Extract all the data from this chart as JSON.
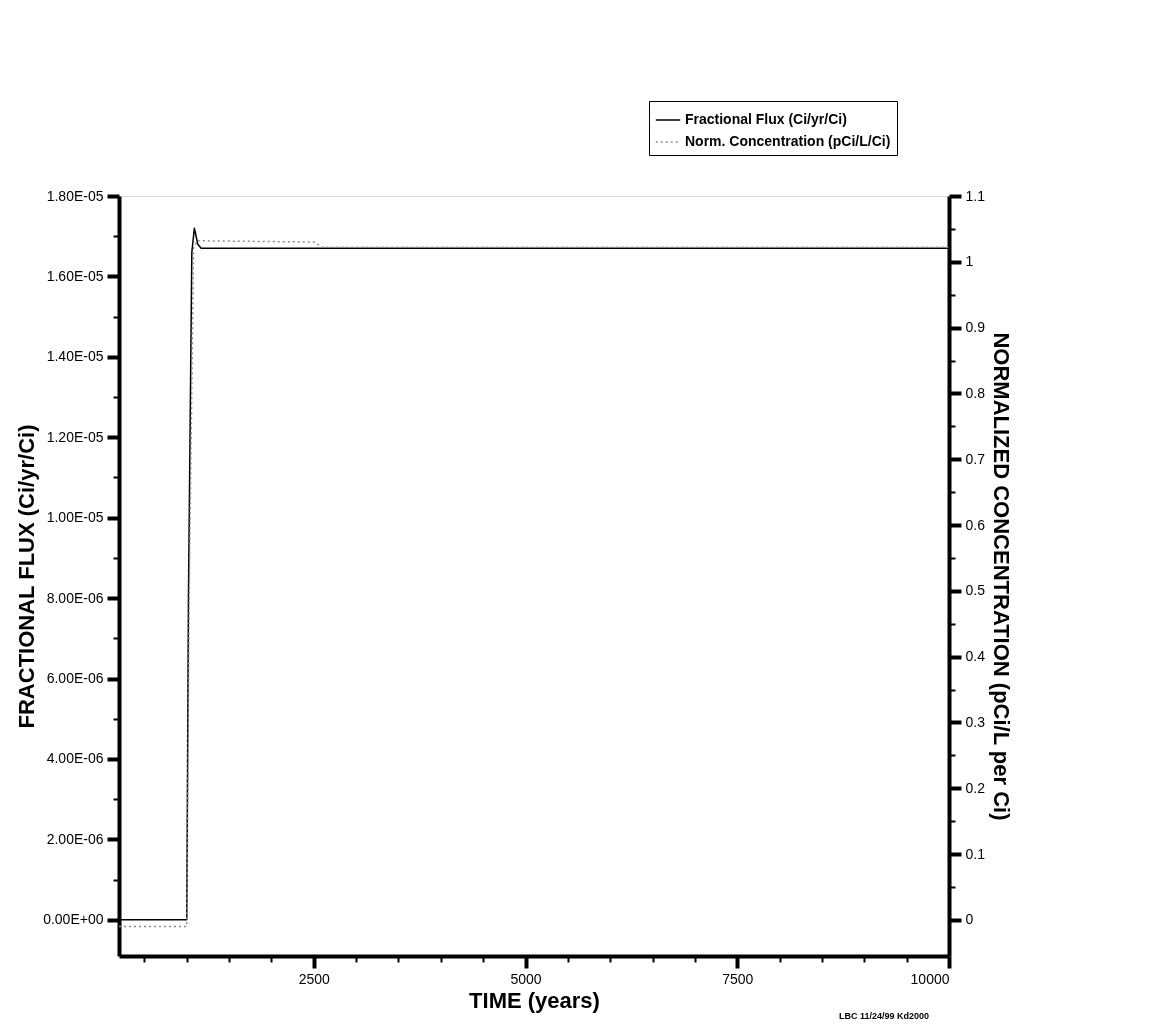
{
  "chart_data": {
    "type": "line",
    "xlabel": "TIME (years)",
    "ylabel": "FRACTIONAL FLUX (Ci/yr/Ci)",
    "y2label": "NORMALIZED CONCENTRATION (pCi/L per Ci)",
    "series": [
      {
        "name": "Fractional Flux (Ci/yr/Ci)",
        "color": "#000000",
        "line_style": "solid",
        "x": [
          200,
          1000,
          1020,
          1060,
          1090,
          1130,
          1170,
          10000
        ],
        "values": [
          0,
          0,
          8e-06,
          1.66e-05,
          1.72e-05,
          1.68e-05,
          1.67e-05,
          1.67e-05
        ]
      },
      {
        "name": "Norm. Concentration (pCi/L/Ci)",
        "color": "#8c8c8c",
        "line_style": "dotted",
        "axis": "y2",
        "x": [
          200,
          1000,
          1030,
          1080,
          1120,
          2500,
          2600,
          10000
        ],
        "values": [
          -0.01,
          -0.01,
          0.5,
          1.02,
          1.032,
          1.03,
          1.022,
          1.022
        ]
      }
    ],
    "xlim": [
      200,
      10000
    ],
    "xticks": [
      {
        "value": 500,
        "label": null
      },
      {
        "value": 1000,
        "label": null
      },
      {
        "value": 1500,
        "label": null
      },
      {
        "value": 2000,
        "label": null
      },
      2500,
      {
        "value": 3000,
        "label": null
      },
      {
        "value": 3500,
        "label": null
      },
      {
        "value": 4000,
        "label": null
      },
      {
        "value": 4500,
        "label": null
      },
      5000,
      {
        "value": 5500,
        "label": null
      },
      {
        "value": 6000,
        "label": null
      },
      {
        "value": 6500,
        "label": null
      },
      {
        "value": 7000,
        "label": null
      },
      7500,
      {
        "value": 8000,
        "label": null
      },
      {
        "value": 8500,
        "label": null
      },
      {
        "value": 9000,
        "label": null
      },
      {
        "value": 9500,
        "label": null
      },
      10000
    ],
    "ylim": [
      -9e-07,
      1.8e-05
    ],
    "yticks": [
      {
        "value": 0,
        "label": "0.00E+00"
      },
      {
        "value": 1e-06,
        "label": null
      },
      {
        "value": 2e-06,
        "label": "2.00E-06"
      },
      {
        "value": 3e-06,
        "label": null
      },
      {
        "value": 4e-06,
        "label": "4.00E-06"
      },
      {
        "value": 5e-06,
        "label": null
      },
      {
        "value": 6e-06,
        "label": "6.00E-06"
      },
      {
        "value": 7e-06,
        "label": null
      },
      {
        "value": 8e-06,
        "label": "8.00E-06"
      },
      {
        "value": 9e-06,
        "label": null
      },
      {
        "value": 1e-05,
        "label": "1.00E-05"
      },
      {
        "value": 1.1e-05,
        "label": null
      },
      {
        "value": 1.2e-05,
        "label": "1.20E-05"
      },
      {
        "value": 1.3e-05,
        "label": null
      },
      {
        "value": 1.4e-05,
        "label": "1.40E-05"
      },
      {
        "value": 1.5e-05,
        "label": null
      },
      {
        "value": 1.6e-05,
        "label": "1.60E-05"
      },
      {
        "value": 1.7e-05,
        "label": null
      },
      {
        "value": 1.8e-05,
        "label": "1.80E-05"
      }
    ],
    "y2lim": [
      -0.055,
      1.1
    ],
    "y2ticks": [
      0,
      {
        "value": 0.05,
        "label": null
      },
      0.1,
      {
        "value": 0.15,
        "label": null
      },
      0.2,
      {
        "value": 0.25,
        "label": null
      },
      0.3,
      {
        "value": 0.35,
        "label": null
      },
      0.4,
      {
        "value": 0.45,
        "label": null
      },
      0.5,
      {
        "value": 0.55,
        "label": null
      },
      0.6,
      {
        "value": 0.65,
        "label": null
      },
      0.7,
      {
        "value": 0.75,
        "label": null
      },
      0.8,
      {
        "value": 0.85,
        "label": null
      },
      0.9,
      {
        "value": 0.95,
        "label": null
      },
      1,
      {
        "value": 1.05,
        "label": null
      },
      1.1
    ],
    "legend": "top right",
    "grid": false,
    "marker": "none",
    "annotations": [
      "LBC 11/24/99 Kd2000"
    ]
  }
}
